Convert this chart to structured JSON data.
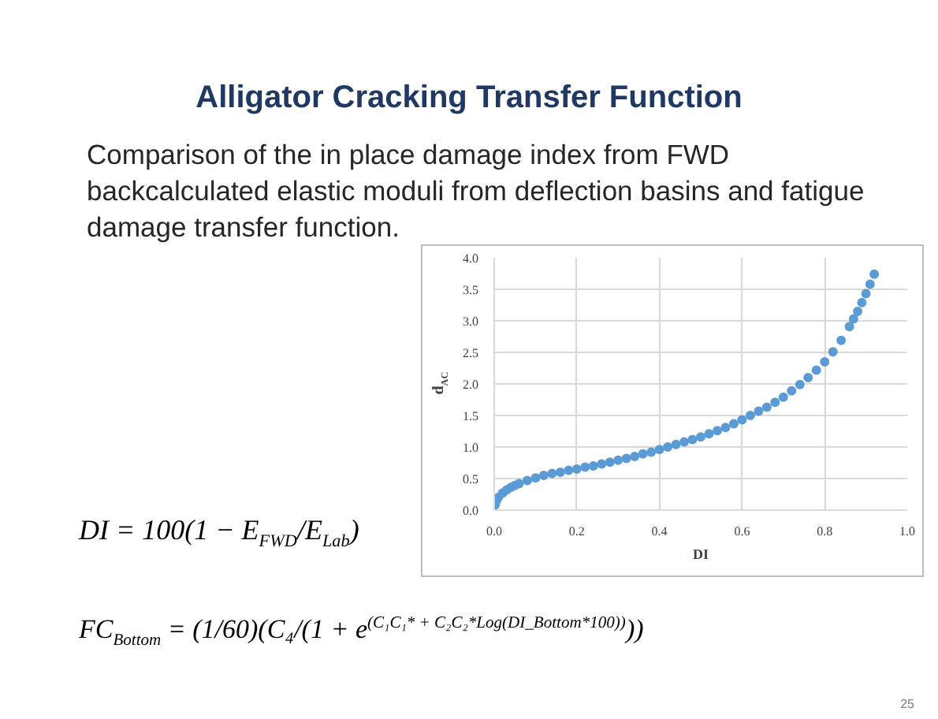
{
  "chart_data": {
    "type": "scatter",
    "title": "Alligator Cracking Transfer Function",
    "subtitle": "Comparison of the in place damage index from FWD backcalculated elastic moduli from deflection basins and fatigue damage transfer function.",
    "xlabel": "DI",
    "ylabel": "d$_{AC}$",
    "x": [
      0.002,
      0.005,
      0.01,
      0.02,
      0.03,
      0.04,
      0.05,
      0.06,
      0.08,
      0.1,
      0.12,
      0.14,
      0.16,
      0.18,
      0.2,
      0.22,
      0.24,
      0.26,
      0.28,
      0.3,
      0.32,
      0.34,
      0.36,
      0.38,
      0.4,
      0.42,
      0.44,
      0.46,
      0.48,
      0.5,
      0.52,
      0.54,
      0.56,
      0.58,
      0.6,
      0.62,
      0.64,
      0.66,
      0.68,
      0.7,
      0.72,
      0.74,
      0.76,
      0.78,
      0.8,
      0.82,
      0.84,
      0.86,
      0.87,
      0.88,
      0.89,
      0.9,
      0.91,
      0.92
    ],
    "values": [
      0.08,
      0.14,
      0.2,
      0.27,
      0.32,
      0.36,
      0.39,
      0.42,
      0.47,
      0.51,
      0.55,
      0.58,
      0.6,
      0.63,
      0.65,
      0.68,
      0.7,
      0.73,
      0.76,
      0.79,
      0.82,
      0.85,
      0.89,
      0.92,
      0.96,
      1.0,
      1.04,
      1.08,
      1.12,
      1.16,
      1.21,
      1.26,
      1.31,
      1.37,
      1.43,
      1.5,
      1.57,
      1.63,
      1.71,
      1.79,
      1.89,
      1.99,
      2.1,
      2.22,
      2.35,
      2.51,
      2.69,
      2.91,
      3.03,
      3.15,
      3.29,
      3.43,
      3.58,
      3.74
    ],
    "color": "#5b9bd5",
    "marker": "circle",
    "xlim": [
      0,
      1
    ],
    "ylim": [
      0,
      4
    ],
    "xticks": [
      {
        "value": 0,
        "label": "0.0"
      },
      0.2,
      0.4,
      0.6,
      0.8,
      {
        "value": 1,
        "label": "1.0"
      }
    ],
    "yticks": [
      {
        "value": 0,
        "label": "0.0"
      },
      0.5,
      {
        "value": 1,
        "label": "1.0"
      },
      1.5,
      {
        "value": 2,
        "label": "2.0"
      },
      2.5,
      {
        "value": 3,
        "label": "3.0"
      },
      3.5,
      {
        "value": 4,
        "label": "4.0"
      }
    ],
    "grid": true,
    "annotations": [
      "DI = 100(1 − E$_{FWD}$/E$_{Lab}$)",
      "FC$_{Bottom}$ = (1/60)(C₄/(1 + e$^{(C₁C₁* + C₂C₂*Log(DI_Bottom*100))}$))",
      "25"
    ]
  }
}
